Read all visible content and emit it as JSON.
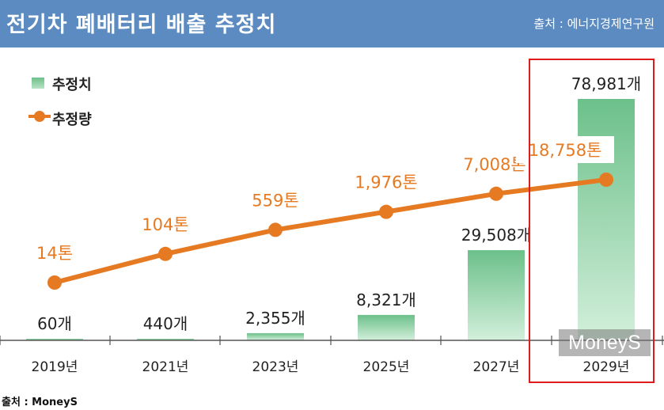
{
  "header": {
    "title": "전기차 폐배터리 배출 추정치",
    "source": "출처 : 에너지경제연구원"
  },
  "legend": {
    "bar_label": "추정치",
    "line_label": "추정량"
  },
  "chart_data": {
    "type": "bar",
    "title": "전기차 폐배터리 배출 추정치",
    "categories": [
      "2019년",
      "2021년",
      "2023년",
      "2025년",
      "2027년",
      "2029년"
    ],
    "series": [
      {
        "name": "추정치",
        "kind": "bar",
        "unit": "개",
        "values": [
          60,
          440,
          2355,
          8321,
          29508,
          78981
        ],
        "labels": [
          "60개",
          "440개",
          "2,355개",
          "8,321개",
          "29,508개",
          "78,981개"
        ]
      },
      {
        "name": "추정량",
        "kind": "line",
        "unit": "톤",
        "values": [
          14,
          104,
          559,
          1976,
          7008,
          18758
        ],
        "labels": [
          "14톤",
          "104톤",
          "559톤",
          "1,976톤",
          "7,008톤",
          "18,758톤"
        ]
      }
    ],
    "legend_position": "top-left",
    "highlighted_category": "2029년",
    "colors": {
      "bar_top": "#6cc08a",
      "bar_bottom": "#c7ead1",
      "line": "#e67a22",
      "highlight": "#e01b1b"
    }
  },
  "watermark": "MoneyS",
  "footer": "출처 : MoneyS"
}
